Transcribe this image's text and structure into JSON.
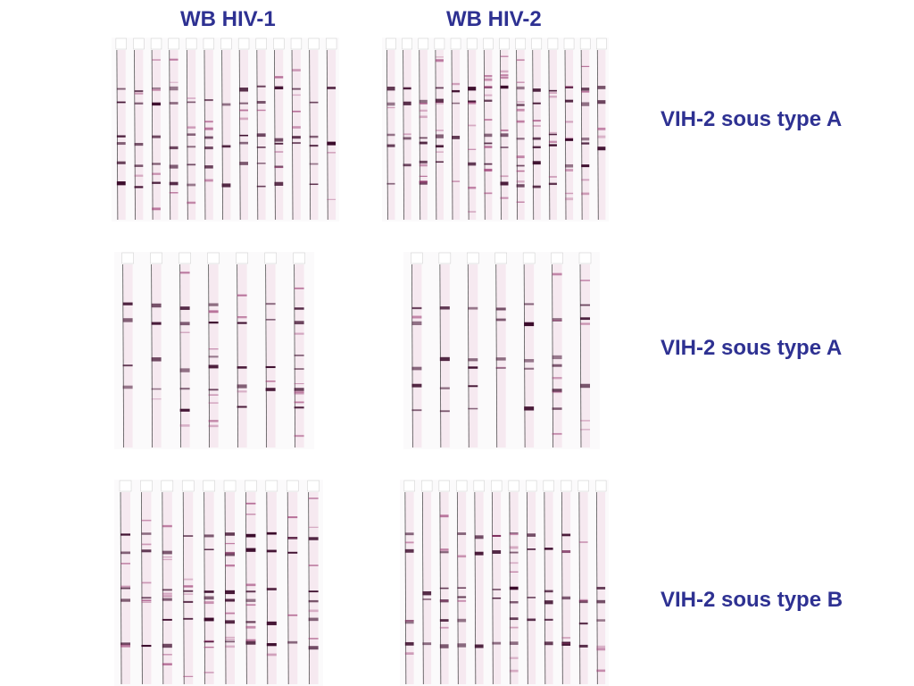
{
  "header": {
    "columns": [
      "WB HIV-1",
      "WB HIV-2"
    ]
  },
  "rows": [
    {
      "label": "VIH-2 sous type A"
    },
    {
      "label": "VIH-2 sous type A"
    },
    {
      "label": "VIH-2 sous type B"
    }
  ]
}
